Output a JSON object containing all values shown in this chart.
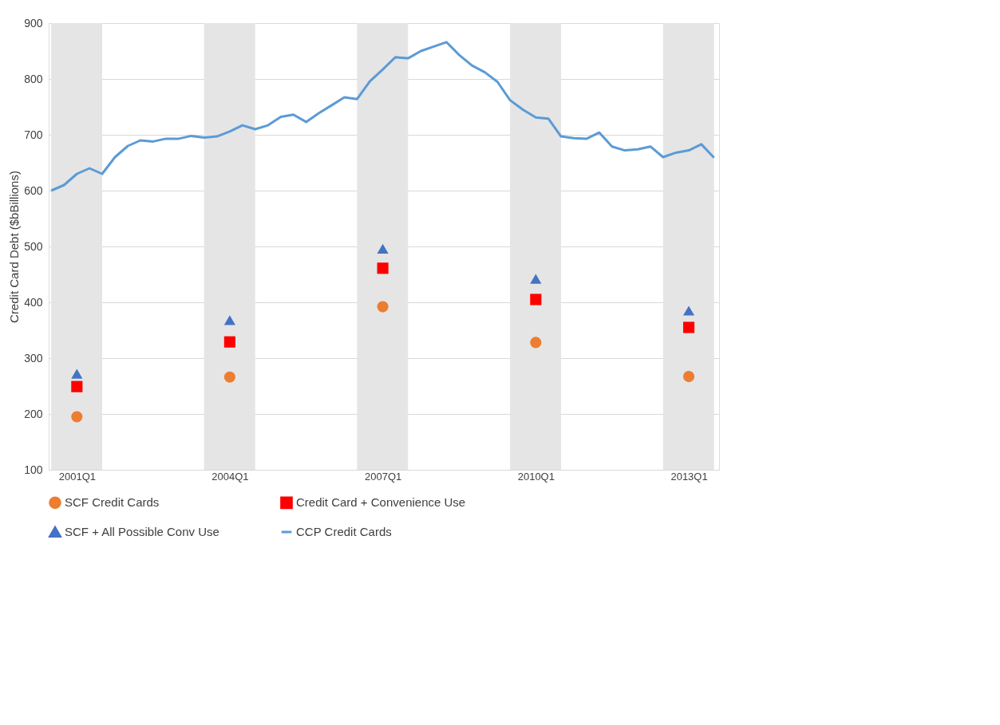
{
  "chart_data": {
    "type": "scatter",
    "ylabel": "Credit Card Debt ($bBillions)",
    "xlim": [
      "2000-06-13",
      "2013-08-06"
    ],
    "xticks": [
      {
        "value": "2001-01",
        "label": "2001Q1"
      },
      {
        "value": "2004-01",
        "label": "2004Q1"
      },
      {
        "value": "2007-01",
        "label": "2007Q1"
      },
      {
        "value": "2010-01",
        "label": "2010Q1"
      },
      {
        "value": "2013-01",
        "label": "2013Q1"
      }
    ],
    "ylim": [
      100,
      900
    ],
    "yticks": [
      100,
      200,
      300,
      400,
      500,
      600,
      700,
      800,
      900
    ],
    "grid": "y",
    "legend": "bottom",
    "bands": [
      {
        "axis": "x",
        "from": "2000-07",
        "to": "2001-07",
        "color": "#e5e5e5"
      },
      {
        "axis": "x",
        "from": "2003-07",
        "to": "2004-07",
        "color": "#e5e5e5"
      },
      {
        "axis": "x",
        "from": "2006-07",
        "to": "2007-07",
        "color": "#e5e5e5"
      },
      {
        "axis": "x",
        "from": "2009-07",
        "to": "2010-07",
        "color": "#e5e5e5"
      },
      {
        "axis": "x",
        "from": "2012-07",
        "to": "2013-07",
        "color": "#e5e5e5"
      }
    ],
    "series": [
      {
        "name": "SCF Credit Cards",
        "marker": "circle",
        "color": "#ed7d31",
        "x": [
          "2001-01",
          "2004-01",
          "2007-01",
          "2010-01",
          "2013-01"
        ],
        "values": [
          195,
          266,
          392,
          328,
          267
        ]
      },
      {
        "name": "Credit Card + Convenience Use",
        "marker": "square",
        "color": "#ff0000",
        "x": [
          "2001-01",
          "2004-01",
          "2007-01",
          "2010-01",
          "2013-01"
        ],
        "values": [
          249,
          329,
          461,
          405,
          355
        ]
      },
      {
        "name": "SCF + All Possible Conv Use",
        "marker": "triangle",
        "color": "#4472c4",
        "x": [
          "2001-01",
          "2004-01",
          "2007-01",
          "2010-01",
          "2013-01"
        ],
        "values": [
          272,
          368,
          496,
          442,
          385
        ]
      },
      {
        "name": "CCP Credit Cards",
        "type": "line",
        "marker": "none",
        "line_style": "solid",
        "color": "#5b9bd5",
        "x": [
          "2000-07",
          "2000-10",
          "2001-01",
          "2001-04",
          "2001-07",
          "2001-10",
          "2002-01",
          "2002-04",
          "2002-07",
          "2002-10",
          "2003-01",
          "2003-04",
          "2003-07",
          "2003-10",
          "2004-01",
          "2004-04",
          "2004-07",
          "2004-10",
          "2005-01",
          "2005-04",
          "2005-07",
          "2005-10",
          "2006-01",
          "2006-04",
          "2006-07",
          "2006-10",
          "2007-01",
          "2007-04",
          "2007-07",
          "2007-10",
          "2008-01",
          "2008-04",
          "2008-07",
          "2008-10",
          "2009-01",
          "2009-04",
          "2009-07",
          "2009-10",
          "2010-01",
          "2010-04",
          "2010-07",
          "2010-10",
          "2011-01",
          "2011-04",
          "2011-07",
          "2011-10",
          "2012-01",
          "2012-04",
          "2012-07",
          "2012-10",
          "2013-01",
          "2013-04",
          "2013-07"
        ],
        "values": [
          600,
          610,
          630,
          640,
          630,
          660,
          680,
          690,
          688,
          693,
          693,
          698,
          695,
          697,
          706,
          717,
          710,
          717,
          732,
          736,
          723,
          739,
          753,
          767,
          764,
          796,
          817,
          839,
          837,
          850,
          858,
          866,
          843,
          824,
          812,
          795,
          762,
          745,
          731,
          729,
          697,
          694,
          693,
          704,
          679,
          672,
          674,
          679,
          660,
          668,
          672,
          683,
          659
        ]
      }
    ]
  }
}
